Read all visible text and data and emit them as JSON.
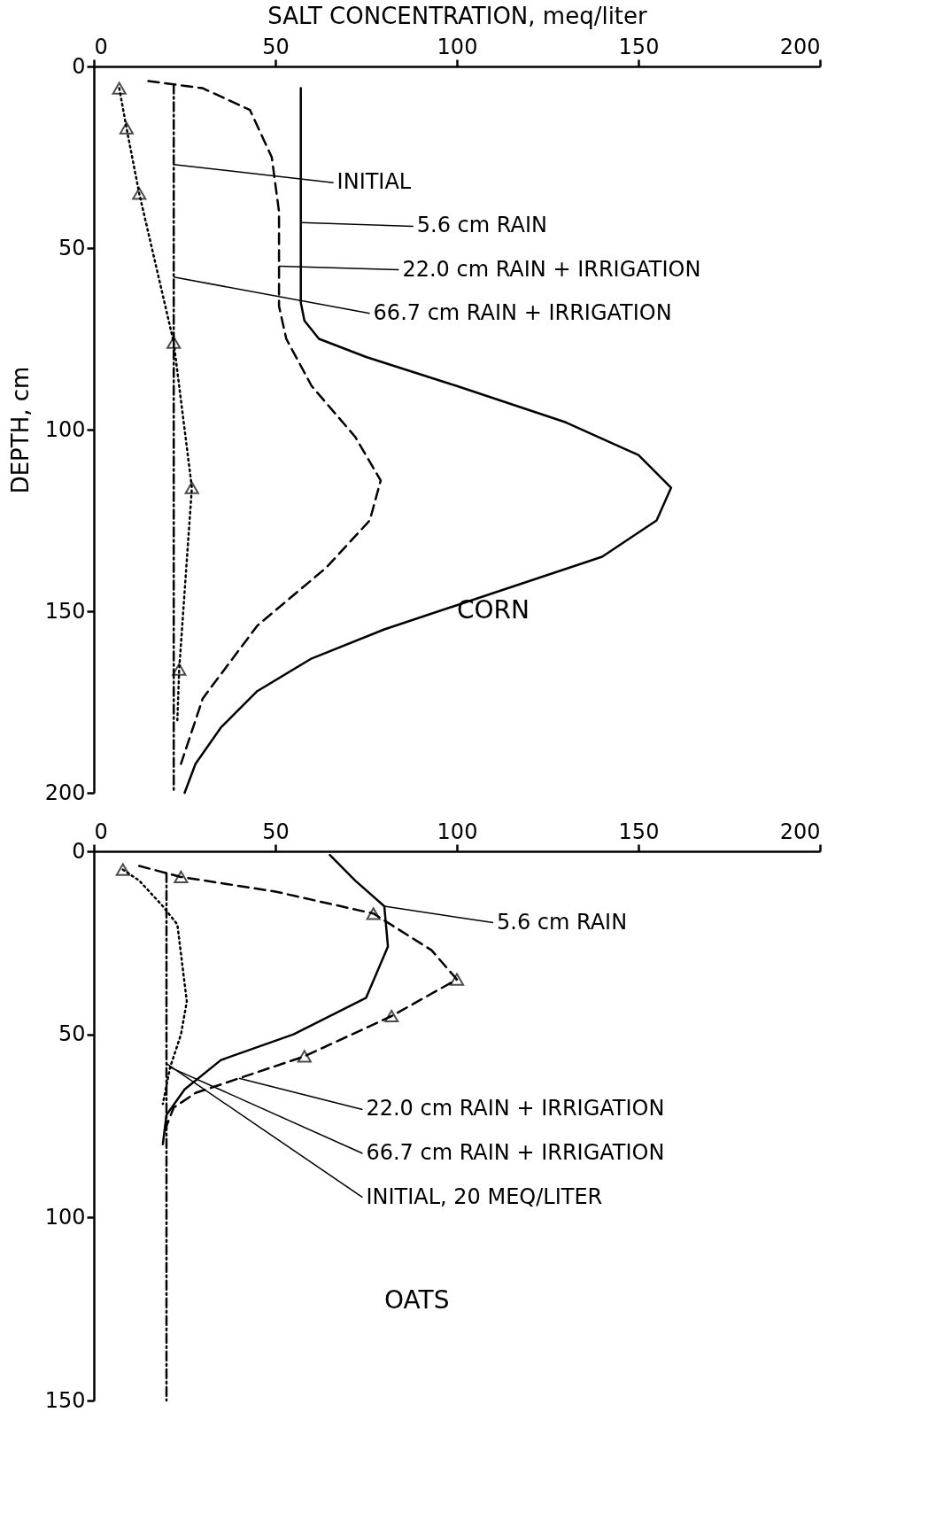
{
  "chart_data": [
    {
      "type": "line",
      "xlabel": "SALT CONCENTRATION, meq/liter",
      "ylabel": "DEPTH, cm",
      "xlim": [
        0,
        200
      ],
      "xticks": [
        0,
        50,
        100,
        150,
        200
      ],
      "ylim": [
        200,
        0
      ],
      "yticks": [
        0,
        50,
        100,
        150,
        200
      ],
      "grid": false,
      "legend": false,
      "series": [
        {
          "color": "#000000",
          "line_style": "dashdot",
          "marker": "none",
          "x": [
            22,
            22,
            22,
            22
          ],
          "values": [
            5,
            70,
            150,
            200
          ]
        },
        {
          "color": "#000000",
          "line_style": "solid",
          "marker": "none",
          "x": [
            57,
            57,
            57,
            58,
            62,
            75,
            100,
            130,
            150,
            159,
            155,
            140,
            110,
            80,
            60,
            45,
            35,
            28,
            25
          ],
          "values": [
            6,
            43,
            65,
            70,
            75,
            80,
            88,
            98,
            107,
            116,
            125,
            135,
            145,
            155,
            163,
            172,
            182,
            192,
            200
          ]
        },
        {
          "color": "#000000",
          "line_style": "dashed",
          "marker": "none",
          "x": [
            15,
            30,
            43,
            49,
            51,
            51,
            51,
            53,
            60,
            72,
            79,
            76,
            64,
            45,
            30,
            24
          ],
          "values": [
            4,
            6,
            12,
            25,
            40,
            55,
            66,
            75,
            88,
            102,
            114,
            125,
            138,
            154,
            174,
            192
          ]
        },
        {
          "color": "#000000",
          "line_style": "dotted",
          "marker": "none",
          "x": [
            7,
            9,
            12.5,
            22,
            27,
            23.5,
            23
          ],
          "values": [
            6,
            17,
            35,
            76,
            116,
            166,
            180
          ]
        },
        {
          "type": "scatter",
          "color": "#000000",
          "marker": "triangle",
          "x": [
            7,
            9,
            12.5,
            22,
            27,
            23.5
          ],
          "values": [
            6,
            17,
            35,
            76,
            116,
            166
          ]
        }
      ],
      "annotations": [
        {
          "text": "INITIAL",
          "x": 22,
          "y": 27
        },
        {
          "text": "5.6 cm RAIN",
          "x": 57,
          "y": 43
        },
        {
          "text": "22.0 cm RAIN + IRRIGATION",
          "x": 51,
          "y": 55
        },
        {
          "text": "66.7 cm RAIN + IRRIGATION",
          "x": 22,
          "y": 58
        },
        "CORN"
      ]
    },
    {
      "type": "line",
      "xlim": [
        0,
        200
      ],
      "xticks": [
        0,
        50,
        100,
        150,
        200
      ],
      "ylim": [
        150,
        0
      ],
      "yticks": [
        0,
        50,
        100,
        150
      ],
      "grid": false,
      "legend": false,
      "series": [
        {
          "color": "#000000",
          "line_style": "dashdot",
          "marker": "none",
          "x": [
            20,
            20,
            20
          ],
          "values": [
            6,
            80,
            150
          ]
        },
        {
          "color": "#000000",
          "line_style": "solid",
          "marker": "none",
          "x": [
            65,
            72,
            80,
            81,
            75,
            55,
            35,
            25,
            20,
            19
          ],
          "values": [
            1,
            8,
            15,
            26,
            40,
            50,
            57,
            65,
            72,
            80
          ]
        },
        {
          "color": "#000000",
          "line_style": "dashed",
          "marker": "none",
          "x": [
            12.5,
            24,
            50,
            77,
            93,
            100,
            82,
            58,
            40,
            28,
            22,
            20
          ],
          "values": [
            4,
            7,
            11,
            17,
            27,
            35,
            45,
            56,
            62,
            66,
            70,
            75
          ]
        },
        {
          "color": "#000000",
          "line_style": "dotted",
          "marker": "none",
          "x": [
            8,
            12.5,
            19,
            23,
            25.6,
            24,
            21,
            19
          ],
          "values": [
            5,
            8,
            15,
            20,
            41,
            50,
            59,
            69
          ]
        },
        {
          "type": "scatter",
          "color": "#000000",
          "marker": "triangle",
          "x": [
            8,
            24,
            77,
            100,
            82,
            58
          ],
          "values": [
            5,
            7,
            17,
            35,
            45,
            56
          ]
        }
      ],
      "annotations": [
        {
          "text": "5.6 cm RAIN",
          "x": 80,
          "y": 15
        },
        {
          "text": "22.0 cm RAIN + IRRIGATION",
          "x": 40,
          "y": 62
        },
        {
          "text": "66.7 cm RAIN + IRRIGATION",
          "x": 21,
          "y": 59
        },
        {
          "text": "INITIAL, 20 MEQ/LITER",
          "x": 20,
          "y": 58
        },
        "OATS"
      ]
    }
  ]
}
